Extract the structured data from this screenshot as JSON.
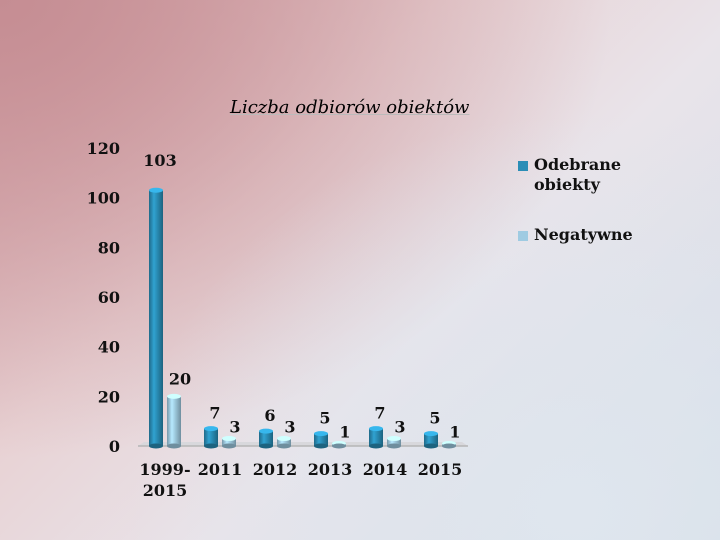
{
  "chart_data": {
    "type": "bar",
    "title": "Liczba odbiorów obiektów",
    "categories": [
      "1999-2015",
      "2011",
      "2012",
      "2013",
      "2014",
      "2015"
    ],
    "category_lines": [
      [
        "1999-",
        "2015"
      ],
      [
        "2011"
      ],
      [
        "2012"
      ],
      [
        "2013"
      ],
      [
        "2014"
      ],
      [
        "2015"
      ]
    ],
    "series": [
      {
        "name": "Odebrane obiekty",
        "values": [
          103,
          7,
          6,
          5,
          7,
          5
        ],
        "color": "#2a8db6"
      },
      {
        "name": "Negatywne",
        "values": [
          20,
          3,
          3,
          1,
          3,
          1
        ],
        "color": "#9fcbe2"
      }
    ],
    "ylim": [
      0,
      120
    ],
    "yticks": [
      "0",
      "20",
      "40",
      "60",
      "80",
      "100",
      "120"
    ],
    "data_labels": true,
    "legend_position": "right",
    "grid": false
  }
}
